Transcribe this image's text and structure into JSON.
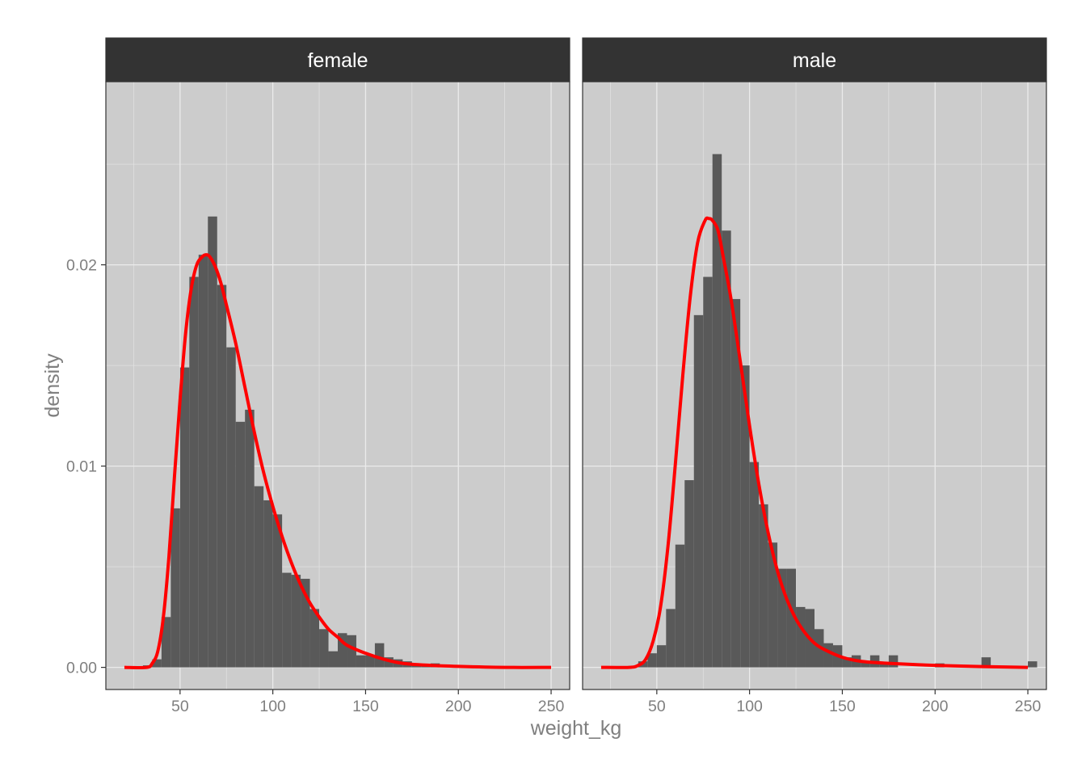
{
  "chart_data": {
    "type": "histogram_with_density",
    "xlabel": "weight_kg",
    "ylabel": "density",
    "xlim": [
      10,
      260
    ],
    "ylim": [
      -0.0011,
      0.0291
    ],
    "x_ticks": [
      50,
      100,
      150,
      200,
      250
    ],
    "x_tick_labels": [
      "50",
      "100",
      "150",
      "200",
      "250"
    ],
    "y_ticks": [
      0,
      0.01,
      0.02
    ],
    "y_tick_labels": [
      "0.00",
      "0.01",
      "0.02"
    ],
    "grid": true,
    "panel_background": "#cccccc",
    "bar_color": "#595959",
    "curve_color": "#ff0000",
    "strip_color": "#333333",
    "bin_width": 5,
    "panels": [
      {
        "label": "female",
        "bins": [
          {
            "x0": 30,
            "x1": 35,
            "density": 0.0001
          },
          {
            "x0": 35,
            "x1": 40,
            "density": 0.0004
          },
          {
            "x0": 40,
            "x1": 45,
            "density": 0.0025
          },
          {
            "x0": 45,
            "x1": 50,
            "density": 0.0079
          },
          {
            "x0": 50,
            "x1": 55,
            "density": 0.0149
          },
          {
            "x0": 55,
            "x1": 60,
            "density": 0.0194
          },
          {
            "x0": 60,
            "x1": 65,
            "density": 0.0205
          },
          {
            "x0": 65,
            "x1": 70,
            "density": 0.0224
          },
          {
            "x0": 70,
            "x1": 75,
            "density": 0.019
          },
          {
            "x0": 75,
            "x1": 80,
            "density": 0.0159
          },
          {
            "x0": 80,
            "x1": 85,
            "density": 0.0122
          },
          {
            "x0": 85,
            "x1": 90,
            "density": 0.0128
          },
          {
            "x0": 90,
            "x1": 95,
            "density": 0.009
          },
          {
            "x0": 95,
            "x1": 100,
            "density": 0.0083
          },
          {
            "x0": 100,
            "x1": 105,
            "density": 0.0076
          },
          {
            "x0": 105,
            "x1": 110,
            "density": 0.0047
          },
          {
            "x0": 110,
            "x1": 115,
            "density": 0.0046
          },
          {
            "x0": 115,
            "x1": 120,
            "density": 0.0044
          },
          {
            "x0": 120,
            "x1": 125,
            "density": 0.0029
          },
          {
            "x0": 125,
            "x1": 130,
            "density": 0.0019
          },
          {
            "x0": 130,
            "x1": 135,
            "density": 0.0008
          },
          {
            "x0": 135,
            "x1": 140,
            "density": 0.0017
          },
          {
            "x0": 140,
            "x1": 145,
            "density": 0.0016
          },
          {
            "x0": 145,
            "x1": 150,
            "density": 0.0006
          },
          {
            "x0": 150,
            "x1": 155,
            "density": 0.0006
          },
          {
            "x0": 155,
            "x1": 160,
            "density": 0.0012
          },
          {
            "x0": 160,
            "x1": 165,
            "density": 0.0005
          },
          {
            "x0": 165,
            "x1": 170,
            "density": 0.0004
          },
          {
            "x0": 170,
            "x1": 175,
            "density": 0.0003
          },
          {
            "x0": 175,
            "x1": 180,
            "density": 0.0001
          },
          {
            "x0": 180,
            "x1": 185,
            "density": 0.0001
          },
          {
            "x0": 185,
            "x1": 190,
            "density": 0.0002
          }
        ],
        "curve": [
          [
            20,
            0.0
          ],
          [
            32,
            0.0
          ],
          [
            35,
            0.0002
          ],
          [
            38,
            0.0008
          ],
          [
            41,
            0.0025
          ],
          [
            44,
            0.0055
          ],
          [
            47,
            0.0095
          ],
          [
            50,
            0.0133
          ],
          [
            53,
            0.0166
          ],
          [
            56,
            0.0188
          ],
          [
            59,
            0.02
          ],
          [
            62,
            0.0204
          ],
          [
            64,
            0.0205
          ],
          [
            66,
            0.0204
          ],
          [
            69,
            0.0199
          ],
          [
            72,
            0.0191
          ],
          [
            75,
            0.018
          ],
          [
            80,
            0.0161
          ],
          [
            85,
            0.0139
          ],
          [
            90,
            0.0117
          ],
          [
            95,
            0.0097
          ],
          [
            100,
            0.008
          ],
          [
            105,
            0.0065
          ],
          [
            110,
            0.0052
          ],
          [
            115,
            0.0041
          ],
          [
            120,
            0.0032
          ],
          [
            125,
            0.0025
          ],
          [
            130,
            0.0019
          ],
          [
            135,
            0.0015
          ],
          [
            140,
            0.0011
          ],
          [
            150,
            0.0007
          ],
          [
            160,
            0.0004
          ],
          [
            170,
            0.0002
          ],
          [
            185,
            0.0001
          ],
          [
            200,
            5e-05
          ],
          [
            225,
            0.0
          ],
          [
            250,
            0.0
          ]
        ]
      },
      {
        "label": "male",
        "bins": [
          {
            "x0": 40,
            "x1": 45,
            "density": 0.0003
          },
          {
            "x0": 45,
            "x1": 50,
            "density": 0.0007
          },
          {
            "x0": 50,
            "x1": 55,
            "density": 0.0011
          },
          {
            "x0": 55,
            "x1": 60,
            "density": 0.0029
          },
          {
            "x0": 60,
            "x1": 65,
            "density": 0.0061
          },
          {
            "x0": 65,
            "x1": 70,
            "density": 0.0093
          },
          {
            "x0": 70,
            "x1": 75,
            "density": 0.0175
          },
          {
            "x0": 75,
            "x1": 80,
            "density": 0.0194
          },
          {
            "x0": 80,
            "x1": 85,
            "density": 0.0255
          },
          {
            "x0": 85,
            "x1": 90,
            "density": 0.0217
          },
          {
            "x0": 90,
            "x1": 95,
            "density": 0.0183
          },
          {
            "x0": 95,
            "x1": 100,
            "density": 0.015
          },
          {
            "x0": 100,
            "x1": 105,
            "density": 0.0102
          },
          {
            "x0": 105,
            "x1": 110,
            "density": 0.0081
          },
          {
            "x0": 110,
            "x1": 115,
            "density": 0.0062
          },
          {
            "x0": 115,
            "x1": 120,
            "density": 0.0049
          },
          {
            "x0": 120,
            "x1": 125,
            "density": 0.0049
          },
          {
            "x0": 125,
            "x1": 130,
            "density": 0.003
          },
          {
            "x0": 130,
            "x1": 135,
            "density": 0.0029
          },
          {
            "x0": 135,
            "x1": 140,
            "density": 0.0019
          },
          {
            "x0": 140,
            "x1": 145,
            "density": 0.0012
          },
          {
            "x0": 145,
            "x1": 150,
            "density": 0.0011
          },
          {
            "x0": 150,
            "x1": 155,
            "density": 0.0005
          },
          {
            "x0": 155,
            "x1": 160,
            "density": 0.0006
          },
          {
            "x0": 160,
            "x1": 165,
            "density": 0.0003
          },
          {
            "x0": 165,
            "x1": 170,
            "density": 0.0006
          },
          {
            "x0": 170,
            "x1": 175,
            "density": 0.0002
          },
          {
            "x0": 175,
            "x1": 180,
            "density": 0.0006
          },
          {
            "x0": 200,
            "x1": 205,
            "density": 0.0002
          },
          {
            "x0": 225,
            "x1": 230,
            "density": 0.0005
          },
          {
            "x0": 250,
            "x1": 255,
            "density": 0.0003
          }
        ],
        "curve": [
          [
            20,
            0.0
          ],
          [
            35,
            0.0
          ],
          [
            40,
            0.0001
          ],
          [
            44,
            0.0004
          ],
          [
            48,
            0.0013
          ],
          [
            52,
            0.003
          ],
          [
            56,
            0.006
          ],
          [
            60,
            0.0101
          ],
          [
            64,
            0.0145
          ],
          [
            68,
            0.0184
          ],
          [
            72,
            0.0211
          ],
          [
            76,
            0.0222
          ],
          [
            78,
            0.0223
          ],
          [
            80,
            0.0222
          ],
          [
            83,
            0.0217
          ],
          [
            86,
            0.0203
          ],
          [
            90,
            0.0183
          ],
          [
            95,
            0.0152
          ],
          [
            100,
            0.012
          ],
          [
            105,
            0.0091
          ],
          [
            110,
            0.0067
          ],
          [
            115,
            0.0048
          ],
          [
            120,
            0.0034
          ],
          [
            125,
            0.0024
          ],
          [
            130,
            0.0017
          ],
          [
            135,
            0.0012
          ],
          [
            140,
            0.0009
          ],
          [
            150,
            0.0005
          ],
          [
            160,
            0.0003
          ],
          [
            175,
            0.0002
          ],
          [
            200,
            0.0001
          ],
          [
            225,
            4e-05
          ],
          [
            250,
            0.0
          ]
        ]
      }
    ]
  }
}
